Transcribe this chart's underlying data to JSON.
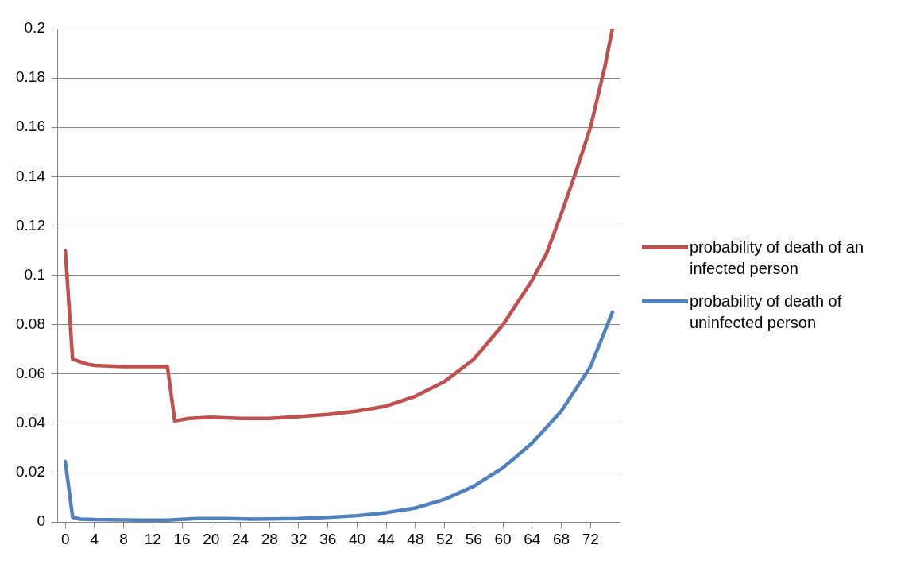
{
  "chart_data": {
    "type": "line",
    "xlim": [
      -1,
      76
    ],
    "xticks": [
      0,
      4,
      8,
      12,
      16,
      20,
      24,
      28,
      32,
      36,
      40,
      44,
      48,
      52,
      56,
      60,
      64,
      68,
      72
    ],
    "ylim": [
      0,
      0.2
    ],
    "yticks": [
      0,
      0.02,
      0.04,
      0.06,
      0.08,
      0.1,
      0.12,
      0.14,
      0.16,
      0.18,
      0.2
    ],
    "grid": "y",
    "legend": "right",
    "marker": "none",
    "line_style": "solid",
    "series": [
      {
        "name": "probability of death of an infected person",
        "color": "#c0504d",
        "x": [
          0,
          1,
          2,
          3,
          4,
          8,
          14,
          15,
          17,
          20,
          24,
          28,
          32,
          36,
          40,
          44,
          48,
          52,
          56,
          60,
          64,
          66,
          68,
          70,
          72,
          74,
          75
        ],
        "values": [
          0.11,
          0.066,
          0.065,
          0.064,
          0.0635,
          0.063,
          0.063,
          0.041,
          0.042,
          0.0425,
          0.042,
          0.042,
          0.0427,
          0.0436,
          0.045,
          0.047,
          0.051,
          0.057,
          0.066,
          0.08,
          0.098,
          0.109,
          0.125,
          0.142,
          0.16,
          0.185,
          0.2
        ]
      },
      {
        "name": "probability of death of uninfected person",
        "color": "#4f81bd",
        "x": [
          0,
          1,
          2,
          4,
          10,
          14,
          18,
          22,
          26,
          32,
          36,
          40,
          44,
          48,
          52,
          56,
          60,
          64,
          68,
          72,
          75
        ],
        "values": [
          0.0245,
          0.002,
          0.0012,
          0.001,
          0.0008,
          0.0008,
          0.0014,
          0.0014,
          0.0012,
          0.0014,
          0.0019,
          0.0026,
          0.0038,
          0.0057,
          0.0092,
          0.0145,
          0.022,
          0.032,
          0.045,
          0.063,
          0.085
        ]
      }
    ]
  }
}
